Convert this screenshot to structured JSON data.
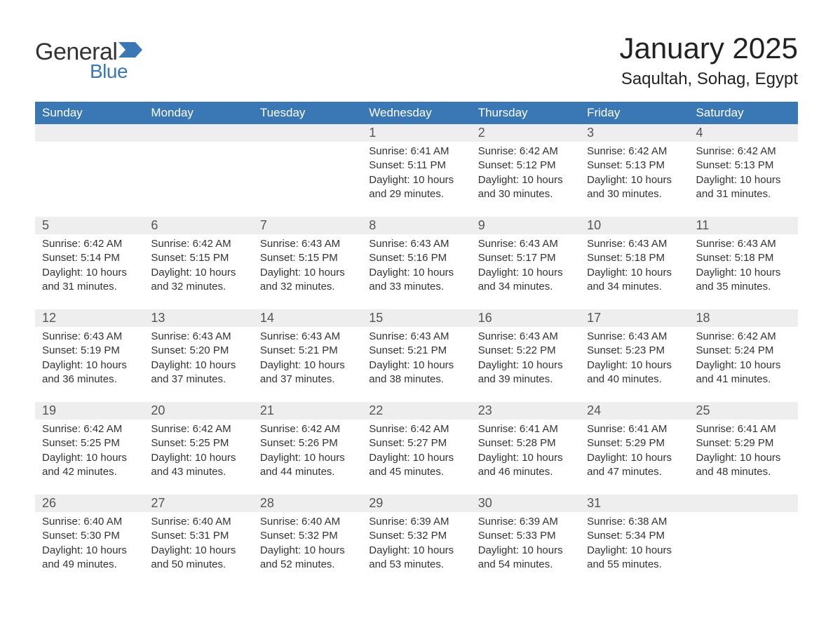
{
  "logo": {
    "text1": "General",
    "text2": "Blue",
    "accent_color": "#3a78b5"
  },
  "title": "January 2025",
  "location": "Saqultah, Sohag, Egypt",
  "colors": {
    "header_bg": "#3a78b5",
    "header_text": "#ffffff",
    "daynum_bg": "#eeeeee",
    "daynum_text": "#555555",
    "body_text": "#333333",
    "rule": "#3a78b5",
    "page_bg": "#ffffff"
  },
  "dow": [
    "Sunday",
    "Monday",
    "Tuesday",
    "Wednesday",
    "Thursday",
    "Friday",
    "Saturday"
  ],
  "labels": {
    "sunrise": "Sunrise:",
    "sunset": "Sunset:",
    "daylight": "Daylight:"
  },
  "weeks": [
    [
      null,
      null,
      null,
      {
        "day": "1",
        "sunrise": "6:41 AM",
        "sunset": "5:11 PM",
        "daylight": "10 hours and 29 minutes."
      },
      {
        "day": "2",
        "sunrise": "6:42 AM",
        "sunset": "5:12 PM",
        "daylight": "10 hours and 30 minutes."
      },
      {
        "day": "3",
        "sunrise": "6:42 AM",
        "sunset": "5:13 PM",
        "daylight": "10 hours and 30 minutes."
      },
      {
        "day": "4",
        "sunrise": "6:42 AM",
        "sunset": "5:13 PM",
        "daylight": "10 hours and 31 minutes."
      }
    ],
    [
      {
        "day": "5",
        "sunrise": "6:42 AM",
        "sunset": "5:14 PM",
        "daylight": "10 hours and 31 minutes."
      },
      {
        "day": "6",
        "sunrise": "6:42 AM",
        "sunset": "5:15 PM",
        "daylight": "10 hours and 32 minutes."
      },
      {
        "day": "7",
        "sunrise": "6:43 AM",
        "sunset": "5:15 PM",
        "daylight": "10 hours and 32 minutes."
      },
      {
        "day": "8",
        "sunrise": "6:43 AM",
        "sunset": "5:16 PM",
        "daylight": "10 hours and 33 minutes."
      },
      {
        "day": "9",
        "sunrise": "6:43 AM",
        "sunset": "5:17 PM",
        "daylight": "10 hours and 34 minutes."
      },
      {
        "day": "10",
        "sunrise": "6:43 AM",
        "sunset": "5:18 PM",
        "daylight": "10 hours and 34 minutes."
      },
      {
        "day": "11",
        "sunrise": "6:43 AM",
        "sunset": "5:18 PM",
        "daylight": "10 hours and 35 minutes."
      }
    ],
    [
      {
        "day": "12",
        "sunrise": "6:43 AM",
        "sunset": "5:19 PM",
        "daylight": "10 hours and 36 minutes."
      },
      {
        "day": "13",
        "sunrise": "6:43 AM",
        "sunset": "5:20 PM",
        "daylight": "10 hours and 37 minutes."
      },
      {
        "day": "14",
        "sunrise": "6:43 AM",
        "sunset": "5:21 PM",
        "daylight": "10 hours and 37 minutes."
      },
      {
        "day": "15",
        "sunrise": "6:43 AM",
        "sunset": "5:21 PM",
        "daylight": "10 hours and 38 minutes."
      },
      {
        "day": "16",
        "sunrise": "6:43 AM",
        "sunset": "5:22 PM",
        "daylight": "10 hours and 39 minutes."
      },
      {
        "day": "17",
        "sunrise": "6:43 AM",
        "sunset": "5:23 PM",
        "daylight": "10 hours and 40 minutes."
      },
      {
        "day": "18",
        "sunrise": "6:42 AM",
        "sunset": "5:24 PM",
        "daylight": "10 hours and 41 minutes."
      }
    ],
    [
      {
        "day": "19",
        "sunrise": "6:42 AM",
        "sunset": "5:25 PM",
        "daylight": "10 hours and 42 minutes."
      },
      {
        "day": "20",
        "sunrise": "6:42 AM",
        "sunset": "5:25 PM",
        "daylight": "10 hours and 43 minutes."
      },
      {
        "day": "21",
        "sunrise": "6:42 AM",
        "sunset": "5:26 PM",
        "daylight": "10 hours and 44 minutes."
      },
      {
        "day": "22",
        "sunrise": "6:42 AM",
        "sunset": "5:27 PM",
        "daylight": "10 hours and 45 minutes."
      },
      {
        "day": "23",
        "sunrise": "6:41 AM",
        "sunset": "5:28 PM",
        "daylight": "10 hours and 46 minutes."
      },
      {
        "day": "24",
        "sunrise": "6:41 AM",
        "sunset": "5:29 PM",
        "daylight": "10 hours and 47 minutes."
      },
      {
        "day": "25",
        "sunrise": "6:41 AM",
        "sunset": "5:29 PM",
        "daylight": "10 hours and 48 minutes."
      }
    ],
    [
      {
        "day": "26",
        "sunrise": "6:40 AM",
        "sunset": "5:30 PM",
        "daylight": "10 hours and 49 minutes."
      },
      {
        "day": "27",
        "sunrise": "6:40 AM",
        "sunset": "5:31 PM",
        "daylight": "10 hours and 50 minutes."
      },
      {
        "day": "28",
        "sunrise": "6:40 AM",
        "sunset": "5:32 PM",
        "daylight": "10 hours and 52 minutes."
      },
      {
        "day": "29",
        "sunrise": "6:39 AM",
        "sunset": "5:32 PM",
        "daylight": "10 hours and 53 minutes."
      },
      {
        "day": "30",
        "sunrise": "6:39 AM",
        "sunset": "5:33 PM",
        "daylight": "10 hours and 54 minutes."
      },
      {
        "day": "31",
        "sunrise": "6:38 AM",
        "sunset": "5:34 PM",
        "daylight": "10 hours and 55 minutes."
      },
      null
    ]
  ]
}
